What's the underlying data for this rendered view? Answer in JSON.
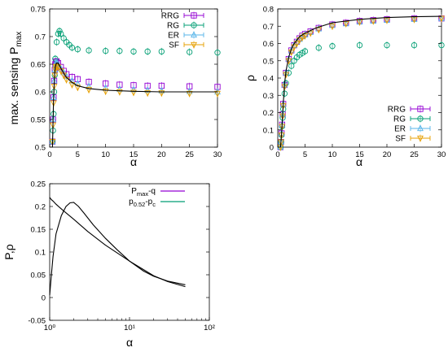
{
  "colors": {
    "RRG": "#9400d3",
    "RG": "#009e73",
    "ER": "#56b4e9",
    "SF": "#e69f00",
    "theory": "#000000"
  },
  "chart_data": [
    {
      "type": "scatter",
      "xlabel": "α",
      "ylabel": "max. sensing P",
      "ylabel_sub": "max",
      "xlim": [
        0,
        30
      ],
      "ylim": [
        0.5,
        0.75
      ],
      "xticks": [
        "0",
        "5",
        "10",
        "15",
        "20",
        "25",
        "30"
      ],
      "yticks": [
        "0.5",
        "0.55",
        "0.6",
        "0.65",
        "0.7",
        "0.75"
      ],
      "legend_position": "top-right",
      "series": [
        {
          "name": "RRG",
          "marker": "square",
          "x": [
            0.5,
            0.6,
            0.7,
            0.8,
            0.9,
            1.0,
            1.1,
            1.25,
            1.5,
            2,
            2.5,
            3,
            4,
            5,
            7,
            10,
            12.5,
            15,
            17.5,
            20,
            25,
            30
          ],
          "y": [
            0.51,
            0.55,
            0.59,
            0.62,
            0.64,
            0.65,
            0.655,
            0.655,
            0.652,
            0.645,
            0.638,
            0.632,
            0.627,
            0.623,
            0.618,
            0.615,
            0.613,
            0.612,
            0.611,
            0.611,
            0.61,
            0.609
          ]
        },
        {
          "name": "RG",
          "marker": "circle",
          "x": [
            0.5,
            0.6,
            0.7,
            0.8,
            0.9,
            1.0,
            1.25,
            1.5,
            1.75,
            2,
            2.5,
            3,
            3.5,
            4,
            5,
            7,
            10,
            12.5,
            15,
            17.5,
            20,
            25,
            30
          ],
          "y": [
            0.51,
            0.53,
            0.56,
            0.6,
            0.63,
            0.66,
            0.69,
            0.705,
            0.71,
            0.705,
            0.697,
            0.69,
            0.685,
            0.68,
            0.677,
            0.675,
            0.674,
            0.674,
            0.673,
            0.673,
            0.673,
            0.672,
            0.671
          ]
        },
        {
          "name": "ER",
          "marker": "triangle-up",
          "x": [
            0.5,
            0.6,
            0.7,
            0.8,
            0.9,
            1.0,
            1.1,
            1.25,
            1.5,
            2,
            2.5,
            3,
            4,
            5,
            7,
            10,
            12.5,
            15,
            17.5,
            20,
            25,
            30
          ],
          "y": [
            0.51,
            0.55,
            0.59,
            0.62,
            0.64,
            0.648,
            0.652,
            0.653,
            0.65,
            0.642,
            0.635,
            0.628,
            0.62,
            0.615,
            0.61,
            0.607,
            0.605,
            0.604,
            0.603,
            0.602,
            0.601,
            0.6
          ]
        },
        {
          "name": "SF",
          "marker": "triangle-down",
          "x": [
            0.5,
            0.6,
            0.7,
            0.8,
            0.9,
            1.0,
            1.1,
            1.25,
            1.5,
            2,
            2.5,
            3,
            4,
            5,
            7,
            10,
            12.5,
            15,
            17.5,
            20,
            25,
            30
          ],
          "y": [
            0.51,
            0.54,
            0.58,
            0.61,
            0.63,
            0.64,
            0.645,
            0.646,
            0.645,
            0.638,
            0.63,
            0.622,
            0.613,
            0.608,
            0.604,
            0.601,
            0.6,
            0.599,
            0.598,
            0.598,
            0.597,
            0.597
          ]
        },
        {
          "name": "",
          "marker": "line",
          "x": [
            0.5,
            0.7,
            0.9,
            1.0,
            1.2,
            1.5,
            2,
            2.5,
            3,
            4,
            5,
            7,
            10,
            15,
            20,
            25,
            30
          ],
          "y": [
            0.5,
            0.59,
            0.635,
            0.645,
            0.652,
            0.652,
            0.643,
            0.634,
            0.626,
            0.617,
            0.611,
            0.606,
            0.603,
            0.601,
            0.6,
            0.6,
            0.6
          ]
        }
      ]
    },
    {
      "type": "scatter",
      "xlabel": "α",
      "ylabel": "ρ",
      "xlim": [
        0,
        30
      ],
      "ylim": [
        0,
        0.8
      ],
      "xticks": [
        "0",
        "5",
        "10",
        "15",
        "20",
        "25",
        "30"
      ],
      "yticks": [
        "0",
        "0.1",
        "0.2",
        "0.3",
        "0.4",
        "0.5",
        "0.6",
        "0.7",
        "0.8"
      ],
      "legend_position": "bottom-right",
      "series": [
        {
          "name": "RRG",
          "marker": "square",
          "x": [
            0.5,
            0.6,
            0.7,
            0.8,
            0.9,
            1.0,
            1.25,
            1.5,
            2,
            2.5,
            3,
            3.5,
            4,
            4.5,
            5,
            6,
            7.5,
            10,
            12.5,
            15,
            17.5,
            20,
            25,
            30
          ],
          "y": [
            0.0,
            0.03,
            0.08,
            0.13,
            0.19,
            0.25,
            0.36,
            0.43,
            0.51,
            0.56,
            0.59,
            0.61,
            0.63,
            0.645,
            0.655,
            0.67,
            0.69,
            0.71,
            0.72,
            0.73,
            0.735,
            0.74,
            0.745,
            0.745
          ]
        },
        {
          "name": "RG",
          "marker": "circle",
          "x": [
            0.5,
            0.6,
            0.7,
            0.8,
            0.9,
            1.0,
            1.25,
            1.5,
            2,
            2.5,
            3,
            3.5,
            4,
            4.5,
            5,
            7.5,
            10,
            15,
            20,
            25,
            30
          ],
          "y": [
            0.0,
            0.03,
            0.07,
            0.12,
            0.17,
            0.22,
            0.31,
            0.37,
            0.43,
            0.47,
            0.5,
            0.52,
            0.535,
            0.545,
            0.555,
            0.575,
            0.585,
            0.59,
            0.59,
            0.59,
            0.59
          ]
        },
        {
          "name": "ER",
          "marker": "triangle-up",
          "x": [
            0.5,
            0.6,
            0.7,
            0.8,
            0.9,
            1.0,
            1.25,
            1.5,
            2,
            2.5,
            3,
            3.5,
            4,
            4.5,
            5,
            6,
            7.5,
            10,
            12.5,
            15,
            17.5,
            20,
            25,
            30
          ],
          "y": [
            0.0,
            0.03,
            0.08,
            0.13,
            0.19,
            0.25,
            0.36,
            0.43,
            0.51,
            0.56,
            0.59,
            0.61,
            0.625,
            0.64,
            0.65,
            0.665,
            0.685,
            0.705,
            0.715,
            0.725,
            0.73,
            0.735,
            0.74,
            0.745
          ]
        },
        {
          "name": "SF",
          "marker": "triangle-down",
          "x": [
            0.5,
            0.6,
            0.7,
            0.8,
            0.9,
            1.0,
            1.25,
            1.5,
            2,
            2.5,
            3,
            3.5,
            4,
            4.5,
            5,
            6,
            7.5,
            10,
            12.5,
            15,
            17.5,
            20,
            25,
            30
          ],
          "y": [
            0.0,
            0.03,
            0.07,
            0.12,
            0.18,
            0.24,
            0.35,
            0.42,
            0.5,
            0.55,
            0.58,
            0.6,
            0.62,
            0.635,
            0.645,
            0.66,
            0.68,
            0.7,
            0.715,
            0.725,
            0.73,
            0.735,
            0.74,
            0.745
          ]
        },
        {
          "name": "",
          "marker": "line",
          "x": [
            0.5,
            0.7,
            0.9,
            1.0,
            1.25,
            1.5,
            2,
            2.5,
            3,
            4,
            5,
            7,
            10,
            15,
            20,
            25,
            30
          ],
          "y": [
            0.0,
            0.08,
            0.19,
            0.25,
            0.37,
            0.44,
            0.52,
            0.57,
            0.6,
            0.64,
            0.66,
            0.69,
            0.72,
            0.74,
            0.75,
            0.755,
            0.757
          ]
        }
      ]
    },
    {
      "type": "line",
      "xlabel": "α",
      "ylabel": "P,ρ",
      "xscale": "log",
      "xlim": [
        1,
        100
      ],
      "ylim": [
        -0.05,
        0.25
      ],
      "xticks": [
        "10⁰",
        "10¹",
        "10²"
      ],
      "yticks": [
        "-0.05",
        "0",
        "0.05",
        "0.1",
        "0.15",
        "0.2",
        "0.25"
      ],
      "legend_position": "top-right",
      "series": [
        {
          "name": "P",
          "name_sub": "max",
          "name_suffix": "-q",
          "x": [
            1.0,
            1.05,
            1.1,
            1.2,
            1.35,
            1.5,
            2,
            3,
            5,
            10,
            20,
            30,
            50
          ],
          "y": [
            0.22,
            0.215,
            0.212,
            0.205,
            0.197,
            0.19,
            0.172,
            0.145,
            0.115,
            0.08,
            0.048,
            0.035,
            0.024
          ]
        },
        {
          "name": "p",
          "name_sub": "0.52",
          "name_suffix": "-p",
          "name_sub2": "c",
          "x": [
            1.0,
            1.05,
            1.1,
            1.2,
            1.4,
            1.6,
            1.8,
            2.0,
            2.3,
            2.7,
            3.5,
            5,
            7,
            10,
            15,
            20,
            30,
            50
          ],
          "y": [
            0.005,
            0.05,
            0.09,
            0.14,
            0.18,
            0.2,
            0.208,
            0.209,
            0.2,
            0.185,
            0.16,
            0.13,
            0.105,
            0.08,
            0.058,
            0.047,
            0.036,
            0.028
          ]
        }
      ]
    }
  ]
}
